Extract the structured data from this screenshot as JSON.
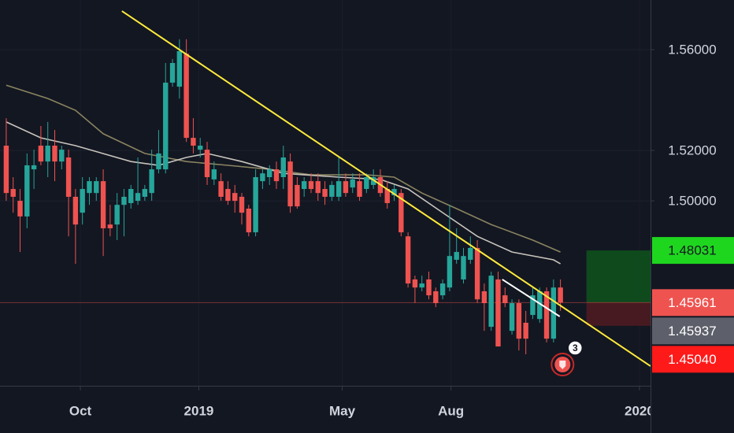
{
  "chart_data": {
    "type": "candlestick",
    "up_color": "#26a69a",
    "down_color": "#ef5350",
    "x": [
      0,
      1,
      2,
      3,
      4,
      5,
      6,
      7,
      8,
      9,
      10,
      11,
      12,
      13,
      14,
      15,
      16,
      17,
      18,
      19,
      20,
      21,
      22,
      23,
      24,
      25,
      26,
      27,
      28,
      29,
      30,
      31,
      32,
      33,
      34,
      35,
      36,
      37,
      38,
      39,
      40,
      41,
      42,
      43,
      44,
      45,
      46,
      47,
      48,
      49,
      50,
      51,
      52,
      53,
      54,
      55,
      56,
      57,
      58,
      59,
      60,
      61,
      62,
      63,
      64,
      65,
      66,
      67,
      68,
      69,
      70,
      71,
      72,
      73,
      74,
      75,
      76,
      77,
      78,
      79,
      80
    ],
    "open": [
      1.5219,
      1.5047,
      1.5,
      1.4938,
      1.5125,
      1.5219,
      1.5156,
      1.5219,
      1.5156,
      1.5172,
      1.5016,
      1.4953,
      1.5031,
      1.5031,
      1.5078,
      1.4906,
      1.4906,
      1.4984,
      1.4991,
      1.5,
      1.5016,
      1.5031,
      1.5125,
      1.5125,
      1.5469,
      1.5453,
      1.5584,
      1.525,
      1.5203,
      1.5203,
      1.5085,
      1.5078,
      1.5047,
      1.5031,
      1.5016,
      1.4969,
      1.4875,
      1.5078,
      1.5094,
      1.5125,
      1.5094,
      1.5156,
      1.5063,
      1.5047,
      1.5078,
      1.5078,
      1.5047,
      1.5016,
      1.5016,
      1.5078,
      1.5053,
      1.5078,
      1.5047,
      1.5063,
      1.5094,
      1.5047,
      1.5022,
      1.5031,
      1.4859,
      1.4688,
      1.4656,
      1.4688,
      1.4641,
      1.4625,
      1.4656,
      1.4766,
      1.4688,
      1.4766,
      1.4813,
      1.4641,
      1.45,
      1.4688,
      1.4625,
      1.4484,
      1.4594,
      1.4516,
      1.4547,
      1.4531,
      1.4641,
      1.4453,
      1.4656
    ],
    "high": [
      1.5328,
      1.5094,
      1.5047,
      1.5188,
      1.5203,
      1.5297,
      1.5313,
      1.5281,
      1.5219,
      1.5203,
      1.5047,
      1.5094,
      1.5094,
      1.5094,
      1.5125,
      1.4984,
      1.5031,
      1.5047,
      1.5063,
      1.5172,
      1.5063,
      1.5203,
      1.5281,
      1.5547,
      1.5563,
      1.5641,
      1.5641,
      1.5328,
      1.525,
      1.5234,
      1.5156,
      1.5109,
      1.5078,
      1.5063,
      1.5031,
      1.4984,
      1.5125,
      1.5125,
      1.5141,
      1.5156,
      1.5219,
      1.5188,
      1.5094,
      1.5094,
      1.5109,
      1.5109,
      1.5078,
      1.5078,
      1.5172,
      1.5109,
      1.5109,
      1.5109,
      1.5109,
      1.5125,
      1.5125,
      1.5078,
      1.5063,
      1.5047,
      1.4875,
      1.4703,
      1.4703,
      1.4719,
      1.4656,
      1.4688,
      1.4984,
      1.4891,
      1.4813,
      1.4859,
      1.4844,
      1.4672,
      1.4719,
      1.4719,
      1.4656,
      1.4609,
      1.4609,
      1.4563,
      1.4656,
      1.4656,
      1.4656,
      1.4688,
      1.4688
    ],
    "low": [
      1.5,
      1.4953,
      1.4797,
      1.4891,
      1.5047,
      1.5141,
      1.5094,
      1.5078,
      1.5125,
      1.4859,
      1.475,
      1.4906,
      1.4984,
      1.5,
      1.4781,
      1.4859,
      1.4844,
      1.4859,
      1.4969,
      1.4984,
      1.5,
      1.5,
      1.5109,
      1.5109,
      1.5453,
      1.5406,
      1.5234,
      1.5188,
      1.5172,
      1.5063,
      1.5063,
      1.5,
      1.4984,
      1.4953,
      1.4906,
      1.4859,
      1.4859,
      1.5047,
      1.5063,
      1.5047,
      1.5047,
      1.4953,
      1.4969,
      1.5016,
      1.5031,
      1.5,
      1.4984,
      1.5,
      1.5,
      1.5016,
      1.5031,
      1.5,
      1.5031,
      1.5047,
      1.5016,
      1.4969,
      1.5,
      1.4859,
      1.4656,
      1.4594,
      1.4641,
      1.4609,
      1.4578,
      1.4609,
      1.4641,
      1.475,
      1.4672,
      1.475,
      1.4594,
      1.4484,
      1.4484,
      1.4422,
      1.4578,
      1.4469,
      1.4406,
      1.4391,
      1.4531,
      1.4516,
      1.4438,
      1.4438,
      1.4563
    ],
    "close": [
      1.5031,
      1.5016,
      1.4938,
      1.5141,
      1.5141,
      1.5156,
      1.5219,
      1.5156,
      1.5203,
      1.5016,
      1.4906,
      1.5047,
      1.5078,
      1.5078,
      1.4891,
      1.4891,
      1.4984,
      1.5016,
      1.5047,
      1.5031,
      1.5047,
      1.5125,
      1.5188,
      1.5469,
      1.5547,
      1.5594,
      1.525,
      1.5219,
      1.5219,
      1.5094,
      1.5125,
      1.5016,
      1.5,
      1.5,
      1.4953,
      1.4875,
      1.5094,
      1.5109,
      1.5125,
      1.5078,
      1.5172,
      1.4978,
      1.4978,
      1.5078,
      1.5047,
      1.5031,
      1.5016,
      1.5063,
      1.5078,
      1.5031,
      1.5085,
      1.5016,
      1.5094,
      1.5094,
      1.5031,
      1.4991,
      1.5047,
      1.4875,
      1.4672,
      1.4656,
      1.4672,
      1.4625,
      1.4594,
      1.4672,
      1.4781,
      1.4797,
      1.4781,
      1.4813,
      1.4609,
      1.4594,
      1.4703,
      1.4422,
      1.4594,
      1.4594,
      1.4453,
      1.4453,
      1.4625,
      1.4641,
      1.4453,
      1.4656,
      1.4596
    ],
    "lines": [
      {
        "color": "#8a8460",
        "x": [
          0,
          6,
          10,
          14,
          20,
          26,
          32,
          38,
          44,
          52,
          56,
          60,
          65,
          70,
          76,
          80
        ],
        "values": [
          1.5459,
          1.5406,
          1.5359,
          1.5266,
          1.5188,
          1.5156,
          1.5141,
          1.5125,
          1.5103,
          1.5103,
          1.5094,
          1.5031,
          1.4969,
          1.4906,
          1.4844,
          1.4797
        ]
      },
      {
        "color": "#c8c4bc",
        "x": [
          0,
          5,
          10,
          18,
          22,
          26,
          29,
          34,
          40,
          48,
          54,
          58,
          63,
          68,
          73,
          79,
          80
        ],
        "values": [
          1.5313,
          1.525,
          1.5219,
          1.5156,
          1.5141,
          1.5172,
          1.5188,
          1.5156,
          1.5109,
          1.5094,
          1.5085,
          1.5047,
          1.4953,
          1.4859,
          1.4797,
          1.4766,
          1.475
        ]
      }
    ],
    "trendlines": [
      {
        "color": "#ffeb3b",
        "x": [
          16.7,
          93
        ],
        "values": [
          1.5753,
          1.4344
        ]
      },
      {
        "color": "#ffffff",
        "x": [
          71.6,
          79.9
        ],
        "values": [
          1.4688,
          1.4541
        ]
      }
    ],
    "position": {
      "x": 83.75,
      "target": 1.48031,
      "entry": 1.45961,
      "stop": 1.4504
    },
    "price_line": 1.45961,
    "price_labels": {
      "values": [
        1.48031,
        1.45961,
        1.45937,
        {
          "value": 1.4504,
          "label": "1.45040"
        }
      ],
      "colors": [
        "#1fd61f",
        "#ef5350",
        "#5d606b",
        "#ff1a1a"
      ],
      "text_colors": [
        "#131722",
        "#ffffff",
        "#ffffff",
        "#ffffff"
      ]
    },
    "event": {
      "x": 80.3,
      "count": 3
    },
    "xlim": [
      -0.9,
      93
    ],
    "ylim": [
      1.4266,
      1.5797
    ],
    "xticks": [
      {
        "value": 10.7,
        "label": "Oct"
      },
      {
        "value": 27.8,
        "label": "2019"
      },
      {
        "value": 48.5,
        "label": "May"
      },
      {
        "value": 64.2,
        "label": "Aug"
      },
      {
        "value": 91.4,
        "label": "2020"
      }
    ],
    "yticks": [
      {
        "value": 1.56,
        "label": "1.56000"
      },
      {
        "value": 1.52,
        "label": "1.52000"
      },
      {
        "value": 1.5,
        "label": "1.50000"
      }
    ],
    "grid": true
  }
}
